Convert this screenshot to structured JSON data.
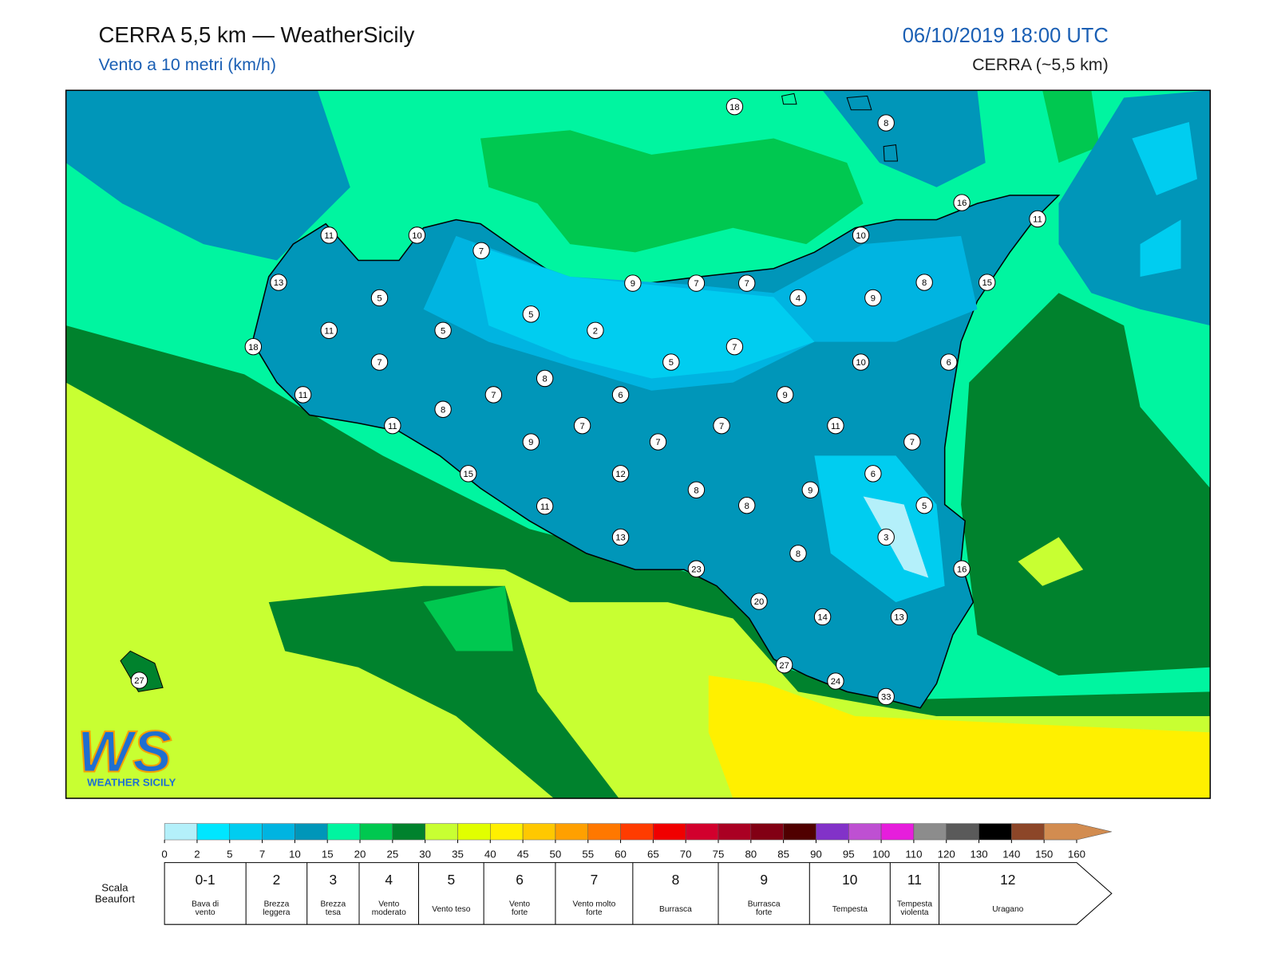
{
  "header": {
    "title": "CERRA 5,5 km — WeatherSicily",
    "subtitle": "Vento a 10 metri (km/h)",
    "datetime": "06/10/2019 18:00 UTC",
    "source": "CERRA (~5,5 km)"
  },
  "map": {
    "labels": [
      18,
      8,
      16,
      11,
      11,
      10,
      7,
      10,
      13,
      9,
      7,
      7,
      8,
      15,
      5,
      4,
      9,
      5,
      11,
      5,
      2,
      18,
      7,
      7,
      5,
      10,
      6,
      8,
      11,
      7,
      6,
      9,
      8,
      11,
      7,
      7,
      11,
      9,
      7,
      7,
      15,
      12,
      6,
      8,
      9,
      11,
      8,
      5,
      3,
      13,
      8,
      16,
      23,
      20,
      14,
      13,
      27,
      24,
      33,
      27
    ]
  },
  "logo": {
    "mark": "WS",
    "name": "WEATHER SICILY"
  },
  "colorbar": {
    "ticks": [
      0,
      2,
      5,
      7,
      10,
      15,
      20,
      25,
      30,
      35,
      40,
      45,
      50,
      55,
      60,
      65,
      70,
      75,
      80,
      85,
      90,
      95,
      100,
      110,
      120,
      130,
      140,
      150,
      160
    ],
    "colors": [
      "#b4f0fa",
      "#00e6ff",
      "#00cdf0",
      "#00b4e1",
      "#0096b9",
      "#00f5a0",
      "#00c850",
      "#00822d",
      "#c8ff32",
      "#e1ff00",
      "#fff000",
      "#ffc800",
      "#ffa000",
      "#ff7800",
      "#ff3c00",
      "#f00000",
      "#d2002d",
      "#aa0023",
      "#820014",
      "#500000",
      "#8232c8",
      "#be50d2",
      "#e61edc",
      "#8c8c8c",
      "#5a5a5a",
      "#000000",
      "#8c4628",
      "#d28c50"
    ]
  },
  "beaufort": {
    "title": "Scala Beaufort",
    "scale": [
      {
        "force": "0-1",
        "label": "Bava di vento"
      },
      {
        "force": 2,
        "label": "Brezza leggera"
      },
      {
        "force": 3,
        "label": "Brezza tesa"
      },
      {
        "force": 4,
        "label": "Vento moderato"
      },
      {
        "force": 5,
        "label": "Vento teso"
      },
      {
        "force": 6,
        "label": "Vento forte"
      },
      {
        "force": 7,
        "label": "Vento molto forte"
      },
      {
        "force": 8,
        "label": "Burrasca"
      },
      {
        "force": 9,
        "label": "Burrasca forte"
      },
      {
        "force": 10,
        "label": "Tempesta"
      },
      {
        "force": 11,
        "label": "Tempesta violenta"
      },
      {
        "force": 12,
        "label": "Uragano"
      }
    ]
  }
}
